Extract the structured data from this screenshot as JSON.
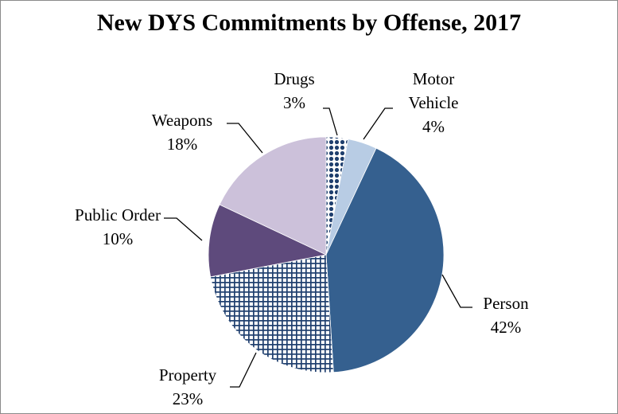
{
  "chart_data": {
    "type": "pie",
    "title": "New DYS Commitments by Offense, 2017",
    "unit": "%",
    "start_angle_deg": 0,
    "direction": "clockwise",
    "slices": [
      {
        "label": "Drugs",
        "label_lines": [
          "Drugs"
        ],
        "value": 3,
        "display": "3%",
        "color": "#1f3f6e",
        "pattern": "dots"
      },
      {
        "label": "Motor Vehicle",
        "label_lines": [
          "Motor",
          "Vehicle"
        ],
        "value": 4,
        "display": "4%",
        "color": "#b8cce4",
        "pattern": "solid"
      },
      {
        "label": "Person",
        "label_lines": [
          "Person"
        ],
        "value": 42,
        "display": "42%",
        "color": "#35608f",
        "pattern": "solid"
      },
      {
        "label": "Property",
        "label_lines": [
          "Property"
        ],
        "value": 23,
        "display": "23%",
        "color": "#1f3f6e",
        "pattern": "grid"
      },
      {
        "label": "Public Order",
        "label_lines": [
          "Public Order"
        ],
        "value": 10,
        "display": "10%",
        "color": "#5e4a7c",
        "pattern": "solid"
      },
      {
        "label": "Weapons",
        "label_lines": [
          "Weapons"
        ],
        "value": 18,
        "display": "18%",
        "color": "#ccc1da",
        "pattern": "solid"
      }
    ]
  }
}
